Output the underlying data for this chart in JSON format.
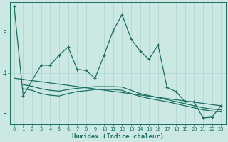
{
  "xlabel": "Humidex (Indice chaleur)",
  "bg_color": "#cbe8e3",
  "grid_color": "#b0d8d2",
  "line_color": "#1a6e63",
  "xlim": [
    -0.5,
    23.5
  ],
  "ylim": [
    2.75,
    5.75
  ],
  "yticks": [
    3,
    4,
    5
  ],
  "xticks": [
    0,
    1,
    2,
    3,
    4,
    5,
    6,
    7,
    8,
    9,
    10,
    11,
    12,
    13,
    14,
    15,
    16,
    17,
    18,
    19,
    20,
    21,
    22,
    23
  ],
  "series1_x": [
    0,
    1,
    3,
    4,
    5,
    6,
    7,
    8,
    9,
    10,
    11,
    12,
    13,
    14,
    15,
    16,
    17,
    18,
    19,
    20,
    21,
    22,
    23
  ],
  "series1_y": [
    5.65,
    3.45,
    4.2,
    4.2,
    4.45,
    4.65,
    4.1,
    4.07,
    3.88,
    4.45,
    5.05,
    5.45,
    4.85,
    4.55,
    4.35,
    4.7,
    3.65,
    3.55,
    3.3,
    3.3,
    2.9,
    2.92,
    3.2
  ],
  "series2_x": [
    0,
    23
  ],
  "series2_y": [
    3.88,
    3.2
  ],
  "series3_x": [
    1,
    2,
    3,
    4,
    5,
    6,
    7,
    8,
    9,
    10,
    11,
    12,
    13,
    14,
    15,
    16,
    17,
    18,
    19,
    20,
    21,
    22,
    23
  ],
  "series3_y": [
    3.72,
    3.68,
    3.62,
    3.58,
    3.56,
    3.6,
    3.63,
    3.65,
    3.67,
    3.67,
    3.67,
    3.66,
    3.58,
    3.5,
    3.45,
    3.4,
    3.35,
    3.3,
    3.25,
    3.2,
    3.15,
    3.12,
    3.1
  ],
  "series4_x": [
    1,
    2,
    3,
    4,
    5,
    6,
    7,
    8,
    9,
    10,
    11,
    12,
    13,
    14,
    15,
    17,
    18,
    19,
    20,
    21,
    22,
    23
  ],
  "series4_y": [
    3.62,
    3.58,
    3.5,
    3.46,
    3.44,
    3.5,
    3.55,
    3.57,
    3.6,
    3.6,
    3.6,
    3.58,
    3.5,
    3.43,
    3.38,
    3.3,
    3.25,
    3.2,
    3.15,
    3.1,
    3.07,
    3.05
  ]
}
